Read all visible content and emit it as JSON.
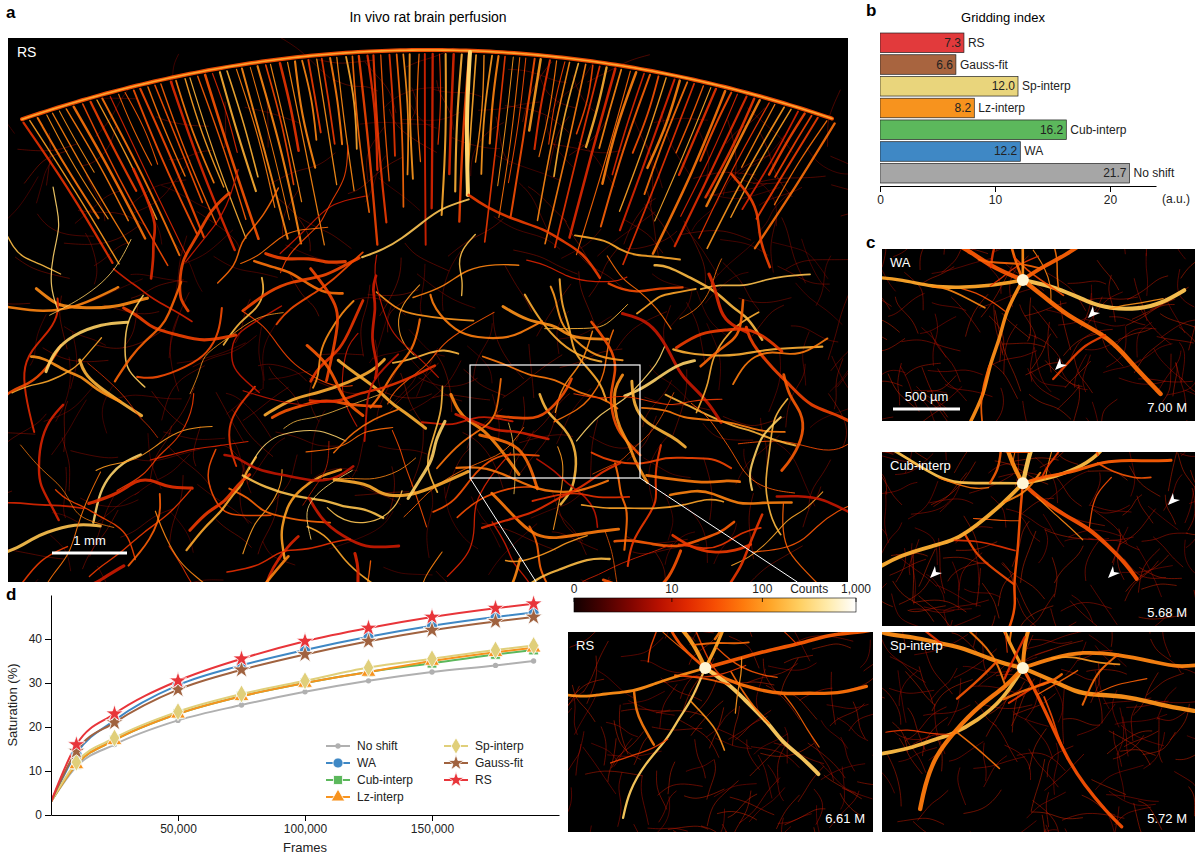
{
  "panels": {
    "a": {
      "letter": "a",
      "title": "In vivo rat brain perfusion",
      "label": "RS",
      "scale_bar": "1 mm"
    },
    "c": {
      "letter": "c",
      "scale_bar": "500 µm",
      "images": [
        {
          "label": "WA",
          "count": "7.00 M"
        },
        {
          "label": "Cub-interp",
          "count": "5.68 M"
        },
        {
          "label": "RS",
          "count": "6.61 M"
        },
        {
          "label": "Sp-interp",
          "count": "5.72 M"
        }
      ]
    }
  },
  "colorbar": {
    "title": "Counts",
    "range": [
      0,
      1000
    ],
    "ticks": [
      0,
      10,
      100,
      {
        "value": 1000,
        "label": "1,000"
      }
    ],
    "log": true
  },
  "chart_data": [
    {
      "type": "bar",
      "panel": "b",
      "title": "Gridding index",
      "orientation": "horizontal",
      "categories": [
        "RS",
        "Gauss-fit",
        "Sp-interp",
        "Lz-interp",
        "Cub-interp",
        "WA",
        "No shift"
      ],
      "values": [
        7.3,
        6.6,
        12.0,
        8.2,
        16.2,
        12.2,
        21.7
      ],
      "value_labels": [
        "7.3",
        "6.6",
        "12.0",
        "8.2",
        "16.2",
        "12.2",
        "21.7"
      ],
      "colors": [
        "#e23a3c",
        "#a8643f",
        "#e9d57c",
        "#f7931e",
        "#5cb85c",
        "#3f88c5",
        "#a6a6a6"
      ],
      "data_labels": true,
      "xlim": [
        0,
        24
      ],
      "xticks": [
        0,
        10,
        20
      ],
      "x_label": "(a.u.)"
    },
    {
      "type": "line",
      "panel": "d",
      "x": [
        0,
        10000,
        25000,
        50000,
        75000,
        100000,
        125000,
        150000,
        175000,
        190000
      ],
      "series": [
        {
          "name": "No shift",
          "color": "#b0b0b0",
          "marker": "circle",
          "line_style": "solid",
          "values": [
            3,
            11,
            16,
            21.5,
            25,
            28,
            30.5,
            32.5,
            34,
            35
          ]
        },
        {
          "name": "WA",
          "color": "#3f88c5",
          "marker": "circle",
          "line_style": "solid",
          "values": [
            3,
            14,
            21.5,
            29.5,
            34,
            37.5,
            40.5,
            43,
            45,
            46
          ]
        },
        {
          "name": "Cub-interp",
          "color": "#5cb85c",
          "marker": "square",
          "line_style": "solid",
          "values": [
            3,
            11.5,
            17,
            23,
            27,
            30,
            32.5,
            34.5,
            36.5,
            37.5
          ]
        },
        {
          "name": "Lz-interp",
          "color": "#f7931e",
          "marker": "triangle",
          "line_style": "solid",
          "values": [
            3,
            11.5,
            17,
            23,
            27,
            30,
            32.5,
            35,
            37,
            38
          ]
        },
        {
          "name": "Sp-interp",
          "color": "#e0cf7a",
          "marker": "diamond",
          "line_style": "solid",
          "values": [
            3,
            12,
            17.5,
            23.5,
            27.5,
            30.5,
            33.5,
            35.5,
            37.5,
            38.5
          ]
        },
        {
          "name": "Gauss-fit",
          "color": "#a0623f",
          "marker": "star",
          "line_style": "solid",
          "values": [
            3,
            14.5,
            21,
            28.5,
            33,
            36.5,
            39.5,
            42,
            44,
            45
          ]
        },
        {
          "name": "RS",
          "color": "#e8353a",
          "marker": "star",
          "line_style": "solid",
          "values": [
            3,
            16,
            23,
            30.5,
            35.5,
            39.5,
            42.5,
            45,
            47,
            48
          ]
        }
      ],
      "xlim": [
        0,
        200000
      ],
      "xticks": [
        {
          "value": 50000,
          "label": "50,000"
        },
        {
          "value": 100000,
          "label": "100,000"
        },
        {
          "value": 150000,
          "label": "150,000"
        }
      ],
      "ylim": [
        0,
        50
      ],
      "yticks": [
        0,
        10,
        20,
        30,
        40
      ],
      "x_label": "Frames",
      "y_label": "Saturation (%)",
      "legend": "lower right"
    }
  ]
}
